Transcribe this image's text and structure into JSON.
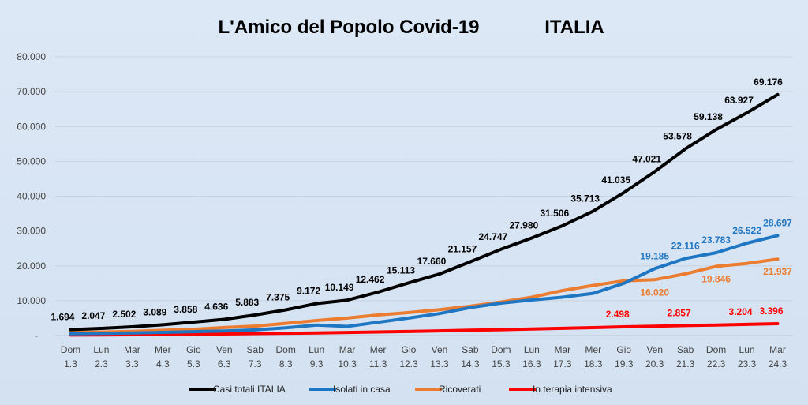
{
  "chart_data": {
    "type": "line",
    "title_left": "L'Amico del Popolo Covid-19",
    "title_right": "ITALIA",
    "xlabel": "",
    "ylabel": "",
    "ylim": [
      0,
      80000
    ],
    "yticks": [
      "-",
      "10.000",
      "20.000",
      "30.000",
      "40.000",
      "50.000",
      "60.000",
      "70.000",
      "80.000"
    ],
    "grid": true,
    "legend_position": "bottom",
    "categories": [
      [
        "Dom",
        "1.3"
      ],
      [
        "Lun",
        "2.3"
      ],
      [
        "Mar",
        "3.3"
      ],
      [
        "Mer",
        "4.3"
      ],
      [
        "Gio",
        "5.3"
      ],
      [
        "Ven",
        "6.3"
      ],
      [
        "Sab",
        "7.3"
      ],
      [
        "Dom",
        "8.3"
      ],
      [
        "Lun",
        "9.3"
      ],
      [
        "Mar",
        "10.3"
      ],
      [
        "Mer",
        "11.3"
      ],
      [
        "Gio",
        "12.3"
      ],
      [
        "Ven",
        "13.3"
      ],
      [
        "Sab",
        "14.3"
      ],
      [
        "Dom",
        "15.3"
      ],
      [
        "Lun",
        "16.3"
      ],
      [
        "Mar",
        "17.3"
      ],
      [
        "Mer",
        "18.3"
      ],
      [
        "Gio",
        "19.3"
      ],
      [
        "Ven",
        "20.3"
      ],
      [
        "Sab",
        "21.3"
      ],
      [
        "Dom",
        "22.3"
      ],
      [
        "Lun",
        "23.3"
      ],
      [
        "Mar",
        "24.3"
      ]
    ],
    "series": [
      {
        "name": "Casi totali ITALIA",
        "color": "#000000",
        "values": [
          1694,
          2047,
          2502,
          3089,
          3858,
          4636,
          5883,
          7375,
          9172,
          10149,
          12462,
          15113,
          17660,
          21157,
          24747,
          27980,
          31506,
          35713,
          41035,
          47021,
          53578,
          59138,
          63927,
          69176
        ],
        "labels": [
          {
            "i": 0,
            "text": "1.694"
          },
          {
            "i": 1,
            "text": "2.047"
          },
          {
            "i": 2,
            "text": "2.502"
          },
          {
            "i": 3,
            "text": "3.089"
          },
          {
            "i": 4,
            "text": "3.858"
          },
          {
            "i": 5,
            "text": "4.636"
          },
          {
            "i": 6,
            "text": "5.883"
          },
          {
            "i": 7,
            "text": "7.375"
          },
          {
            "i": 8,
            "text": "9.172"
          },
          {
            "i": 9,
            "text": "10.149"
          },
          {
            "i": 10,
            "text": "12.462"
          },
          {
            "i": 11,
            "text": "15.113"
          },
          {
            "i": 12,
            "text": "17.660"
          },
          {
            "i": 13,
            "text": "21.157"
          },
          {
            "i": 14,
            "text": "24.747"
          },
          {
            "i": 15,
            "text": "27.980"
          },
          {
            "i": 16,
            "text": "31.506"
          },
          {
            "i": 17,
            "text": "35.713"
          },
          {
            "i": 18,
            "text": "41.035"
          },
          {
            "i": 19,
            "text": "47.021"
          },
          {
            "i": 20,
            "text": "53.578"
          },
          {
            "i": 21,
            "text": "59.138"
          },
          {
            "i": 22,
            "text": "63.927"
          },
          {
            "i": 23,
            "text": "69.176"
          }
        ]
      },
      {
        "name": "Isolati in casa",
        "color": "#1f77c4",
        "values": [
          500,
          600,
          750,
          900,
          1100,
          1300,
          1600,
          2200,
          3000,
          2600,
          3800,
          5000,
          6300,
          8000,
          9300,
          10200,
          11000,
          12100,
          15000,
          19185,
          22116,
          23783,
          26522,
          28697
        ],
        "labels": [
          {
            "i": 19,
            "text": "19.185"
          },
          {
            "i": 20,
            "text": "22.116"
          },
          {
            "i": 21,
            "text": "23.783"
          },
          {
            "i": 22,
            "text": "26.522"
          },
          {
            "i": 23,
            "text": "28.697"
          }
        ]
      },
      {
        "name": "Ricoverati",
        "color": "#ec7c30",
        "values": [
          900,
          1000,
          1200,
          1500,
          1800,
          2300,
          2700,
          3500,
          4300,
          5000,
          5900,
          6600,
          7400,
          8400,
          9600,
          11000,
          12900,
          14400,
          15700,
          16020,
          17700,
          19846,
          20700,
          21937
        ],
        "labels": [
          {
            "i": 19,
            "text": "16.020"
          },
          {
            "i": 21,
            "text": "19.846"
          },
          {
            "i": 23,
            "text": "21.937"
          }
        ]
      },
      {
        "name": "In terapia intensiva",
        "color": "#ff0000",
        "values": [
          140,
          166,
          229,
          295,
          351,
          462,
          567,
          650,
          733,
          877,
          1028,
          1153,
          1328,
          1518,
          1672,
          1851,
          2060,
          2257,
          2498,
          2655,
          2857,
          3009,
          3204,
          3396
        ],
        "labels": [
          {
            "i": 18,
            "text": "2.498"
          },
          {
            "i": 20,
            "text": "2.857"
          },
          {
            "i": 22,
            "text": "3.204"
          },
          {
            "i": 23,
            "text": "3.396"
          }
        ]
      }
    ]
  }
}
